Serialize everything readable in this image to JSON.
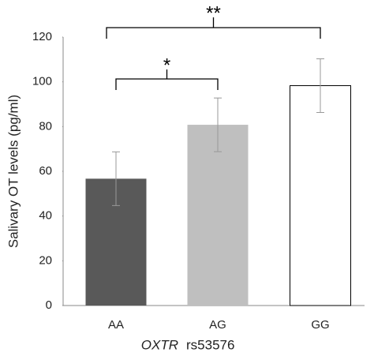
{
  "chart_data": {
    "type": "bar",
    "ylabel": "Salivary OT levels (pg/ml)",
    "xlabel": [
      "OXTR",
      "rs53576"
    ],
    "categories": [
      "AA",
      "AG",
      "GG"
    ],
    "values": [
      56.7,
      80.8,
      98.3
    ],
    "errors": [
      12,
      12,
      12
    ],
    "colors": [
      "#595959",
      "#bfbfbf",
      "#ffffff"
    ],
    "ylim": [
      0,
      120
    ],
    "yticks": [
      0,
      20,
      40,
      60,
      80,
      100,
      120
    ],
    "grid": false,
    "annotations": [
      "*",
      "**"
    ]
  }
}
